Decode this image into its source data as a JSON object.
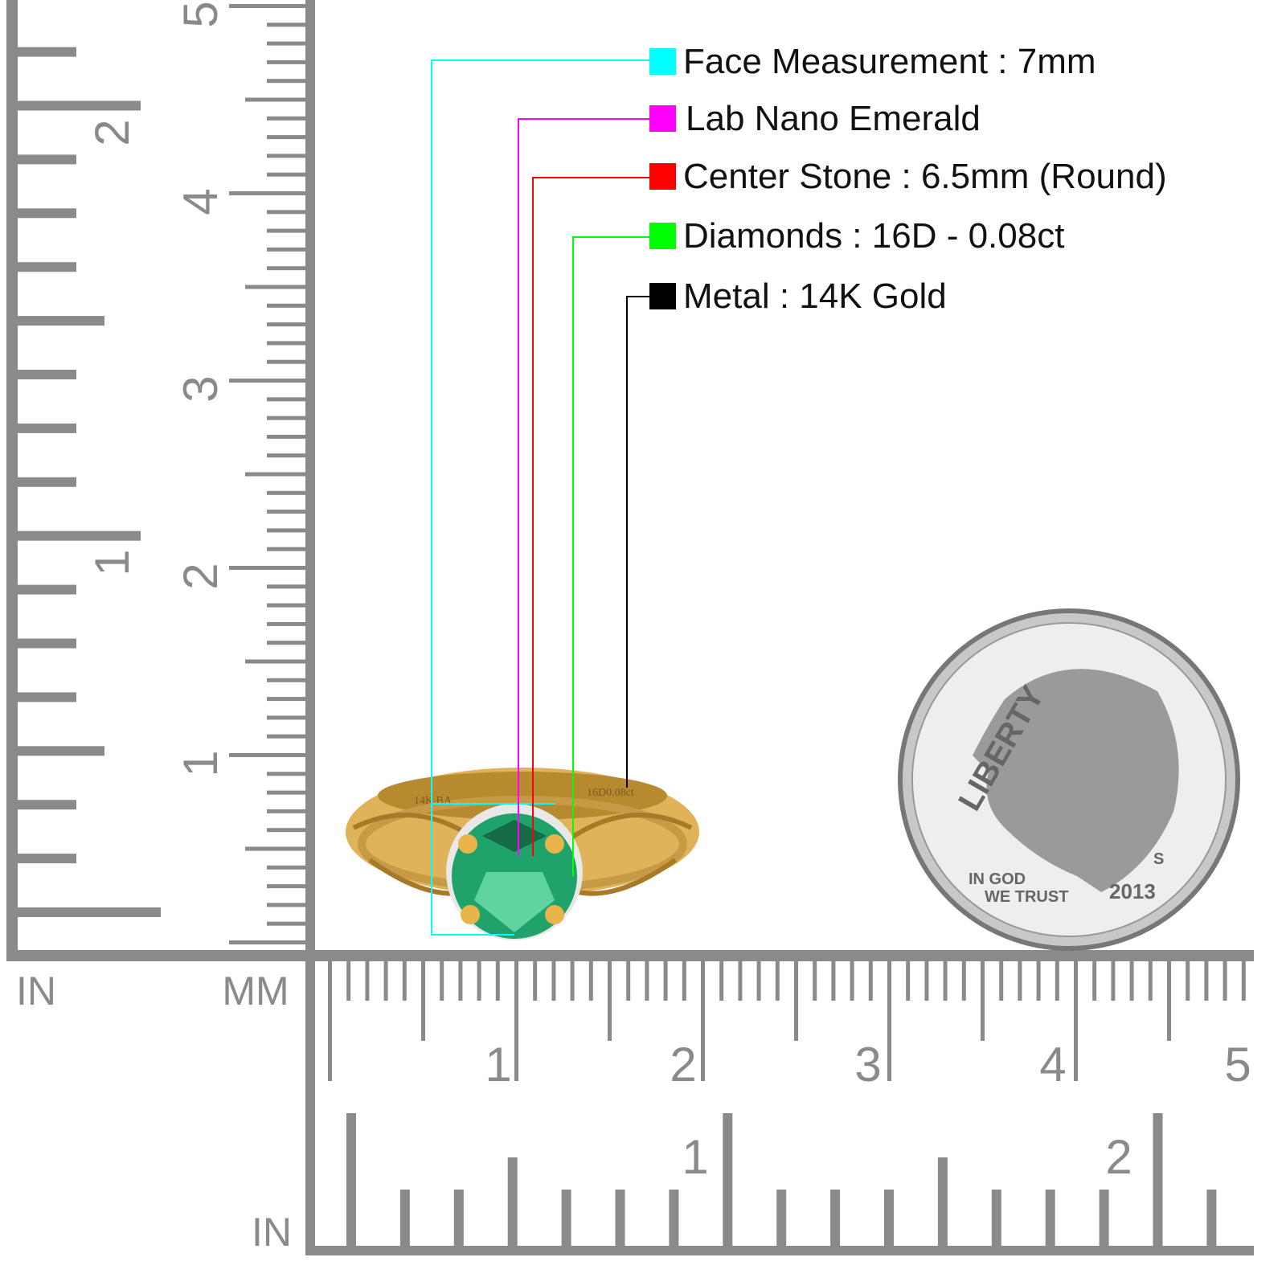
{
  "legend": [
    {
      "label": "Face Measurement : 7mm",
      "color": "#00ffff"
    },
    {
      "label": "Lab Nano Emerald",
      "color": "#ff00ff"
    },
    {
      "label": "Center Stone : 6.5mm (Round)",
      "color": "#ff0000"
    },
    {
      "label": "Diamonds : 16D - 0.08ct",
      "color": "#00ff00"
    },
    {
      "label": "Metal : 14K Gold",
      "color": "#000000"
    }
  ],
  "rulers": {
    "left_in_label": "IN",
    "left_mm_label": "MM",
    "bottom_in_label": "IN",
    "left_inch_numbers": [
      "1",
      "2"
    ],
    "left_cm_numbers": [
      "1",
      "2",
      "3",
      "4",
      "5"
    ],
    "bottom_cm_numbers": [
      "1",
      "2",
      "3",
      "4",
      "5"
    ],
    "bottom_inch_numbers": [
      "1",
      "2"
    ],
    "color": "#8a8a8a"
  },
  "ring": {
    "engraving_left": "14K BA",
    "engraving_right": "16D0.08ct",
    "metal_color": "#e0b25a",
    "stone_color": "#1fa36a"
  },
  "coin": {
    "top_text": "LIBERTY",
    "motto_line1": "IN GOD",
    "motto_line2": "WE TRUST",
    "year": "2013",
    "mint_mark": "S"
  }
}
